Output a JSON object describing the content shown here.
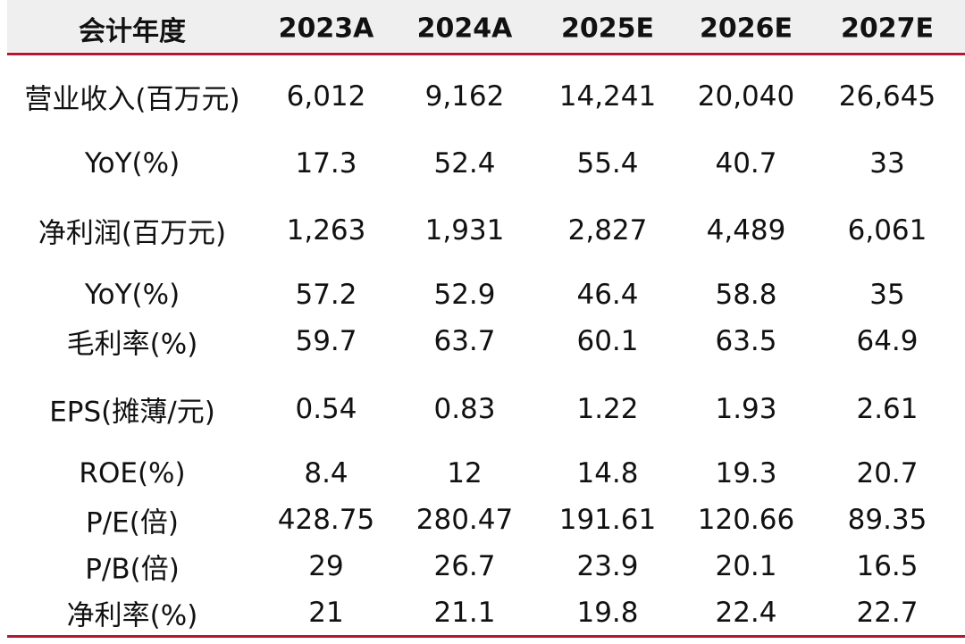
{
  "table": {
    "header": [
      "会计年度",
      "2023A",
      "2024A",
      "2025E",
      "2026E",
      "2027E"
    ],
    "rows": [
      [
        "营业收入(百万元)",
        "6,012",
        "9,162",
        "14,241",
        "20,040",
        "26,645"
      ],
      [
        "YoY(%)",
        "17.3",
        "52.4",
        "55.4",
        "40.7",
        "33"
      ],
      [
        "净利润(百万元)",
        "1,263",
        "1,931",
        "2,827",
        "4,489",
        "6,061"
      ],
      [
        "YoY(%)",
        "57.2",
        "52.9",
        "46.4",
        "58.8",
        "35"
      ],
      [
        "毛利率(%)",
        "59.7",
        "63.7",
        "60.1",
        "63.5",
        "64.9"
      ],
      [
        "EPS(摊薄/元)",
        "0.54",
        "0.83",
        "1.22",
        "1.93",
        "2.61"
      ],
      [
        "ROE(%)",
        "8.4",
        "12",
        "14.8",
        "19.3",
        "20.7"
      ],
      [
        "P/E(倍)",
        "428.75",
        "280.47",
        "191.61",
        "120.66",
        "89.35"
      ],
      [
        "P/B(倍)",
        "29",
        "26.7",
        "23.9",
        "20.1",
        "16.5"
      ],
      [
        "净利率(%)",
        "21",
        "21.1",
        "19.8",
        "22.4",
        "22.7"
      ]
    ]
  }
}
